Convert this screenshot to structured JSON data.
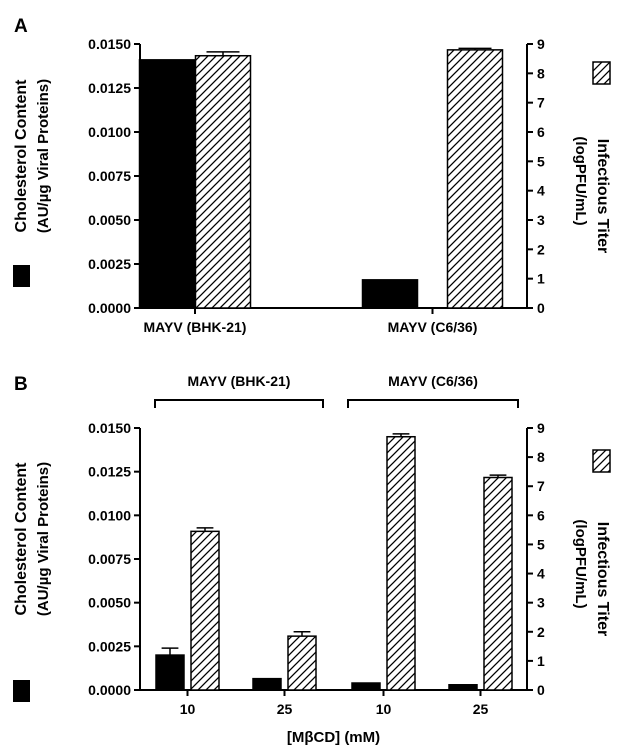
{
  "chart_data": [
    {
      "type": "bar",
      "panel_label": "A",
      "categories": [
        "MAYV (BHK-21)",
        "MAYV (C6/36)"
      ],
      "group_labels": [],
      "xlabel": "",
      "ylabel_left": "Cholesterol Content",
      "ylabel_left_sub": "(AU/µg Viral Proteins)",
      "ylabel_right": "Infectious Titer",
      "ylabel_right_sub": "(logPFU/mL)",
      "ylim_left": [
        0,
        0.015
      ],
      "ylim_right": [
        0,
        9
      ],
      "left_ticks": [
        "0.0000",
        "0.0025",
        "0.0050",
        "0.0075",
        "0.0100",
        "0.0125",
        "0.0150"
      ],
      "right_ticks": [
        "0",
        "1",
        "2",
        "3",
        "4",
        "5",
        "6",
        "7",
        "8",
        "9"
      ],
      "series": [
        {
          "axis": "left",
          "fill": "solid",
          "values": [
            0.0141,
            0.0016
          ],
          "errors": [
            0,
            0
          ]
        },
        {
          "axis": "right",
          "fill": "hatched",
          "values": [
            8.6,
            8.8
          ],
          "errors": [
            0.13,
            0.05
          ]
        }
      ]
    },
    {
      "type": "bar",
      "panel_label": "B",
      "categories": [
        "10",
        "25",
        "10",
        "25"
      ],
      "group_labels": [
        "MAYV (BHK-21)",
        "MAYV (C6/36)"
      ],
      "xlabel": "[MβCD] (mM)",
      "ylabel_left": "Cholesterol Content",
      "ylabel_left_sub": "(AU/µg Viral Proteins)",
      "ylabel_right": "Infectious Titer",
      "ylabel_right_sub": "(logPFU/mL)",
      "ylim_left": [
        0,
        0.015
      ],
      "ylim_right": [
        0,
        9
      ],
      "left_ticks": [
        "0.0000",
        "0.0025",
        "0.0050",
        "0.0075",
        "0.0100",
        "0.0125",
        "0.0150"
      ],
      "right_ticks": [
        "0",
        "1",
        "2",
        "3",
        "4",
        "5",
        "6",
        "7",
        "8",
        "9"
      ],
      "series": [
        {
          "axis": "left",
          "fill": "solid",
          "values": [
            0.002,
            0.00065,
            0.0004,
            0.0003
          ],
          "errors": [
            0.0004,
            0,
            0,
            0
          ]
        },
        {
          "axis": "right",
          "fill": "hatched",
          "values": [
            5.45,
            1.85,
            8.7,
            7.3
          ],
          "errors": [
            0.12,
            0.15,
            0.1,
            0.08
          ]
        }
      ]
    }
  ]
}
